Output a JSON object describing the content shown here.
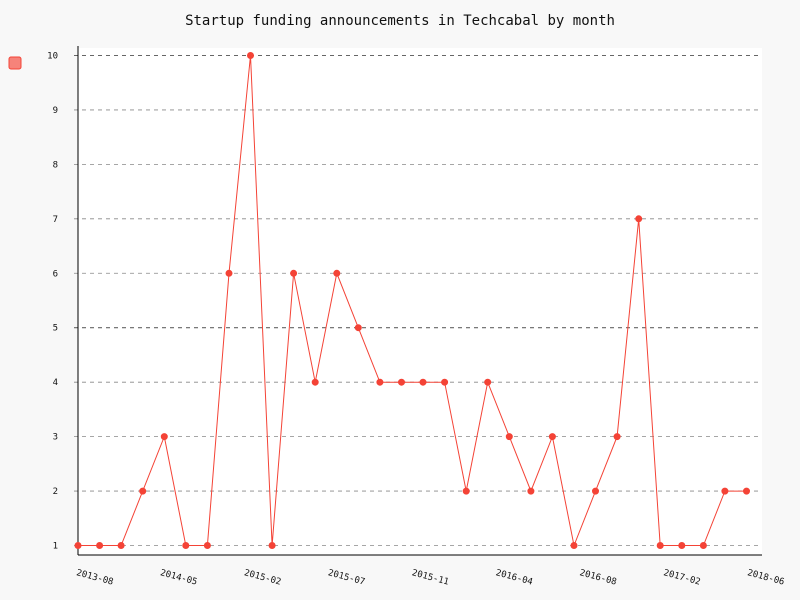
{
  "chart_data": {
    "type": "line",
    "title": "Startup funding announcements in Techcabal by month",
    "xlabel": "",
    "ylabel": "",
    "ylim": [
      1,
      10
    ],
    "y_ticks": [
      1,
      2,
      3,
      4,
      5,
      6,
      7,
      8,
      9,
      10
    ],
    "x_tick_labels": [
      "2013-08",
      "2014-05",
      "2015-02",
      "2015-07",
      "2015-11",
      "2016-04",
      "2016-08",
      "2017-02",
      "2018-06"
    ],
    "grid": "horizontal dashed",
    "legend": "top-left",
    "series": [
      {
        "name": "",
        "color": "#f44336",
        "values": [
          1,
          1,
          1,
          2,
          3,
          1,
          1,
          6,
          10,
          1,
          6,
          4,
          6,
          5,
          4,
          4,
          4,
          4,
          2,
          4,
          3,
          2,
          3,
          1,
          2,
          3,
          7,
          1,
          1,
          1,
          2,
          2
        ]
      }
    ]
  }
}
